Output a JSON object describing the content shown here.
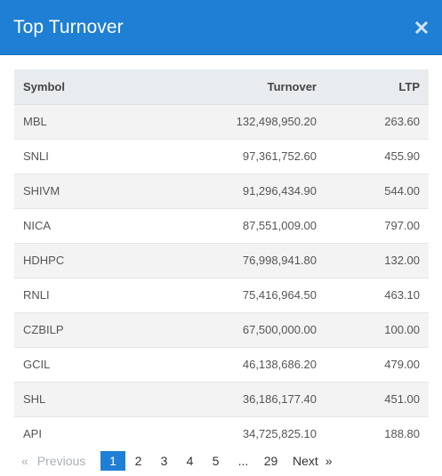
{
  "modal": {
    "title": "Top Turnover",
    "close_icon": "close-icon",
    "accent_color": "#1e7fd4"
  },
  "table": {
    "headers": {
      "symbol": "Symbol",
      "turnover": "Turnover",
      "ltp": "LTP"
    },
    "rows": [
      {
        "symbol": "MBL",
        "turnover": "132,498,950.20",
        "ltp": "263.60"
      },
      {
        "symbol": "SNLI",
        "turnover": "97,361,752.60",
        "ltp": "455.90"
      },
      {
        "symbol": "SHIVM",
        "turnover": "91,296,434.90",
        "ltp": "544.00"
      },
      {
        "symbol": "NICA",
        "turnover": "87,551,009.00",
        "ltp": "797.00"
      },
      {
        "symbol": "HDHPC",
        "turnover": "76,998,941.80",
        "ltp": "132.00"
      },
      {
        "symbol": "RNLI",
        "turnover": "75,416,964.50",
        "ltp": "463.10"
      },
      {
        "symbol": "CZBILP",
        "turnover": "67,500,000.00",
        "ltp": "100.00"
      },
      {
        "symbol": "GCIL",
        "turnover": "46,138,686.20",
        "ltp": "479.00"
      },
      {
        "symbol": "SHL",
        "turnover": "36,186,177.40",
        "ltp": "451.00"
      },
      {
        "symbol": "API",
        "turnover": "34,725,825.10",
        "ltp": "188.80"
      }
    ]
  },
  "pagination": {
    "prev_symbol": "«",
    "prev_label": "Previous",
    "pages": [
      "1",
      "2",
      "3",
      "4",
      "5"
    ],
    "current_page": "1",
    "ellipsis": "...",
    "last_page": "29",
    "next_label": "Next",
    "next_symbol": "»"
  }
}
